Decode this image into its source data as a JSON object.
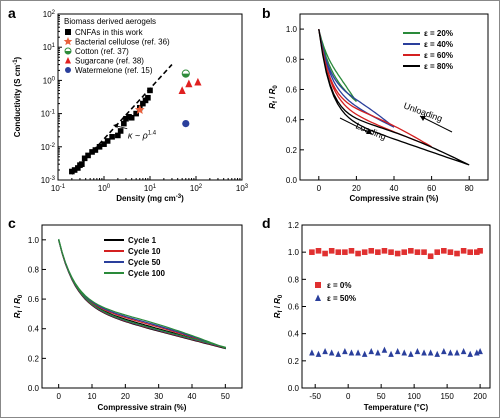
{
  "chart_data": [
    {
      "panel": "a",
      "type": "scatter",
      "xlabel": "Density (mg cm⁻³)",
      "ylabel": "Conductivity (S cm⁻¹)",
      "xscale": "log",
      "yscale": "log",
      "xlim": [
        0.1,
        1000
      ],
      "ylim": [
        0.001,
        100
      ],
      "xticks": [
        "10⁻¹",
        "10⁰",
        "10¹",
        "10²",
        "10³"
      ],
      "yticks": [
        "10⁻³",
        "10⁻²",
        "10⁻¹",
        "10⁰",
        "10¹",
        "10²"
      ],
      "legend_title": "Biomass derived aerogels",
      "legend_position": "top-left",
      "annotation": "κ ~ ρ^1.4",
      "series": [
        {
          "name": "CNFAs in this work",
          "marker": "square",
          "color": "#000000",
          "x": [
            0.2,
            0.23,
            0.27,
            0.3,
            0.33,
            0.38,
            0.45,
            0.55,
            0.65,
            0.8,
            1.0,
            1.2,
            1.5,
            2.0,
            2.3,
            2.7,
            3.0,
            3.5,
            4.0,
            5.0,
            6.0,
            7.0,
            8.0,
            9.0,
            10.0
          ],
          "y": [
            0.0018,
            0.002,
            0.0023,
            0.0028,
            0.003,
            0.0045,
            0.0055,
            0.007,
            0.008,
            0.01,
            0.012,
            0.015,
            0.02,
            0.022,
            0.03,
            0.05,
            0.07,
            0.08,
            0.075,
            0.1,
            0.15,
            0.2,
            0.25,
            0.3,
            0.5
          ]
        },
        {
          "name": "Bacterial cellulose (ref. 36)",
          "marker": "star",
          "color": "#e8603c",
          "x": [
            6.0
          ],
          "y": [
            0.13
          ]
        },
        {
          "name": "Cotton (ref. 37)",
          "marker": "half-circle",
          "color": "#2e8b3a",
          "x": [
            60
          ],
          "y": [
            1.6
          ]
        },
        {
          "name": "Sugarcane (ref. 38)",
          "marker": "triangle",
          "color": "#e02020",
          "x": [
            50,
            70,
            110
          ],
          "y": [
            0.5,
            0.8,
            0.9
          ]
        },
        {
          "name": "Watermelone (ref. 15)",
          "marker": "circle",
          "color": "#2a3f9c",
          "x": [
            60
          ],
          "y": [
            0.05
          ]
        }
      ],
      "fit_line": {
        "style": "dashed",
        "x": [
          0.2,
          30
        ],
        "y": [
          0.0015,
          3.0
        ]
      }
    },
    {
      "panel": "b",
      "type": "line",
      "xlabel": "Compressive strain (%)",
      "ylabel": "Rf / R0",
      "xlim": [
        -10,
        90
      ],
      "ylim": [
        0.0,
        1.1
      ],
      "xticks": [
        0,
        20,
        40,
        60,
        80
      ],
      "yticks": [
        0.0,
        0.2,
        0.4,
        0.6,
        0.8,
        1.0
      ],
      "legend_position": "top-right",
      "annotations": [
        "Unloading",
        "Loading"
      ],
      "series": [
        {
          "name": "ε = 20%",
          "color": "#2a8a3a",
          "max_strain": 20,
          "end_value": 0.52
        },
        {
          "name": "ε = 40%",
          "color": "#2a3f9c",
          "max_strain": 40,
          "end_value": 0.35
        },
        {
          "name": "ε = 60%",
          "color": "#d42020",
          "max_strain": 60,
          "end_value": 0.22
        },
        {
          "name": "ε = 80%",
          "color": "#000000",
          "max_strain": 80,
          "end_value": 0.1
        }
      ]
    },
    {
      "panel": "c",
      "type": "line",
      "xlabel": "Compressive strain (%)",
      "ylabel": "Rf / R0",
      "xlim": [
        -5,
        55
      ],
      "ylim": [
        0.0,
        1.1
      ],
      "xticks": [
        0,
        10,
        20,
        30,
        40,
        50
      ],
      "yticks": [
        0.0,
        0.2,
        0.4,
        0.6,
        0.8,
        1.0
      ],
      "legend_position": "top-right",
      "series": [
        {
          "name": "Cycle 1",
          "color": "#000000"
        },
        {
          "name": "Cycle 10",
          "color": "#d42020"
        },
        {
          "name": "Cycle 50",
          "color": "#2a3f9c"
        },
        {
          "name": "Cycle 100",
          "color": "#2a8a3a"
        }
      ]
    },
    {
      "panel": "d",
      "type": "scatter",
      "xlabel": "Temperature (°C)",
      "ylabel": "Rf / R0",
      "xlim": [
        -70,
        215
      ],
      "ylim": [
        0.0,
        1.2
      ],
      "xticks": [
        -50,
        0,
        50,
        100,
        150,
        200
      ],
      "yticks": [
        0.0,
        0.2,
        0.4,
        0.6,
        0.8,
        1.0,
        1.2
      ],
      "legend_position": "center-left",
      "series": [
        {
          "name": "ε = 0%",
          "marker": "square",
          "color": "#e03030",
          "x": [
            -55,
            -45,
            -35,
            -25,
            -15,
            -5,
            5,
            15,
            25,
            35,
            45,
            55,
            65,
            75,
            85,
            95,
            105,
            115,
            125,
            135,
            145,
            155,
            165,
            175,
            185,
            195,
            200
          ],
          "y": [
            1.0,
            1.01,
            0.99,
            1.01,
            1.0,
            1.0,
            1.01,
            0.99,
            1.0,
            1.01,
            1.0,
            1.01,
            1.0,
            0.99,
            1.0,
            1.01,
            1.0,
            1.0,
            0.97,
            1.0,
            1.01,
            1.0,
            0.99,
            1.01,
            1.0,
            1.0,
            1.01
          ]
        },
        {
          "name": "ε = 50%",
          "marker": "triangle",
          "color": "#2a3f9c",
          "x": [
            -55,
            -45,
            -35,
            -25,
            -15,
            -5,
            5,
            15,
            25,
            35,
            45,
            55,
            65,
            75,
            85,
            95,
            105,
            115,
            125,
            135,
            145,
            155,
            165,
            175,
            185,
            195,
            200
          ],
          "y": [
            0.26,
            0.25,
            0.27,
            0.26,
            0.25,
            0.27,
            0.26,
            0.26,
            0.25,
            0.27,
            0.26,
            0.28,
            0.25,
            0.27,
            0.26,
            0.25,
            0.27,
            0.26,
            0.26,
            0.25,
            0.27,
            0.26,
            0.26,
            0.27,
            0.25,
            0.26,
            0.27
          ]
        }
      ]
    }
  ]
}
